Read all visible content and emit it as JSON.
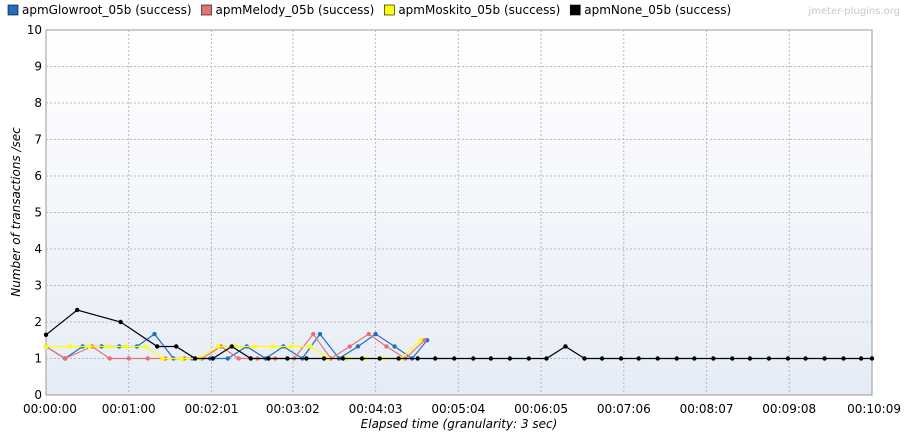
{
  "watermark": "jmeter-plugins.org",
  "chart_data": {
    "type": "line",
    "xlabel": "Elapsed time (granularity: 3 sec)",
    "ylabel": "Number of transactions /sec",
    "ylim": [
      0,
      10
    ],
    "y_ticks": [
      0,
      1,
      2,
      3,
      4,
      5,
      6,
      7,
      8,
      9,
      10
    ],
    "x_unit": "seconds",
    "xlim": [
      0,
      609
    ],
    "x_ticks": [
      0,
      61,
      122,
      182,
      243,
      304,
      365,
      426,
      487,
      548,
      609
    ],
    "x_tick_labels": [
      "00:00:00",
      "00:01:00",
      "00:02:01",
      "00:03:02",
      "00:04:03",
      "00:05:04",
      "00:06:05",
      "00:07:06",
      "00:08:07",
      "00:09:08",
      "00:10:09"
    ],
    "grid": true,
    "legend_position": "top",
    "series": [
      {
        "name": "apmGlowroot_05b (success)",
        "color": "#1f6fc5",
        "points": [
          [
            0,
            1.33
          ],
          [
            14,
            1.0
          ],
          [
            27,
            1.33
          ],
          [
            41,
            1.33
          ],
          [
            54,
            1.33
          ],
          [
            67,
            1.33
          ],
          [
            80,
            1.67
          ],
          [
            94,
            1.0
          ],
          [
            108,
            1.0
          ],
          [
            121,
            1.0
          ],
          [
            134,
            1.0
          ],
          [
            148,
            1.33
          ],
          [
            162,
            1.0
          ],
          [
            175,
            1.33
          ],
          [
            189,
            1.0
          ],
          [
            202,
            1.67
          ],
          [
            216,
            1.0
          ],
          [
            230,
            1.33
          ],
          [
            243,
            1.67
          ],
          [
            257,
            1.33
          ],
          [
            270,
            1.0
          ],
          [
            281,
            1.5
          ]
        ]
      },
      {
        "name": "apmMelody_05b (success)",
        "color": "#e87272",
        "points": [
          [
            0,
            1.33
          ],
          [
            14,
            1.0
          ],
          [
            34,
            1.33
          ],
          [
            47,
            1.0
          ],
          [
            61,
            1.0
          ],
          [
            75,
            1.0
          ],
          [
            88,
            1.0
          ],
          [
            102,
            1.0
          ],
          [
            115,
            1.0
          ],
          [
            129,
            1.33
          ],
          [
            142,
            1.0
          ],
          [
            156,
            1.0
          ],
          [
            169,
            1.0
          ],
          [
            183,
            1.0
          ],
          [
            197,
            1.67
          ],
          [
            210,
            1.0
          ],
          [
            224,
            1.33
          ],
          [
            238,
            1.67
          ],
          [
            251,
            1.33
          ],
          [
            265,
            1.0
          ],
          [
            279,
            1.5
          ]
        ]
      },
      {
        "name": "apmMoskito_05b (success)",
        "color": "#ffff00",
        "points": [
          [
            0,
            1.33
          ],
          [
            18,
            1.33
          ],
          [
            32,
            1.33
          ],
          [
            45,
            1.33
          ],
          [
            59,
            1.33
          ],
          [
            73,
            1.33
          ],
          [
            86,
            1.0
          ],
          [
            100,
            1.0
          ],
          [
            113,
            1.0
          ],
          [
            127,
            1.33
          ],
          [
            140,
            1.33
          ],
          [
            154,
            1.33
          ],
          [
            167,
            1.33
          ],
          [
            181,
            1.33
          ],
          [
            195,
            1.33
          ],
          [
            208,
            1.0
          ],
          [
            222,
            1.0
          ],
          [
            235,
            1.0
          ],
          [
            249,
            1.0
          ],
          [
            262,
            1.0
          ],
          [
            276,
            1.5
          ]
        ]
      },
      {
        "name": "apmNone_05b (success)",
        "color": "#000000",
        "points": [
          [
            0,
            1.65
          ],
          [
            23,
            2.33
          ],
          [
            55,
            2.0
          ],
          [
            82,
            1.33
          ],
          [
            96,
            1.33
          ],
          [
            110,
            1.0
          ],
          [
            123,
            1.0
          ],
          [
            137,
            1.33
          ],
          [
            151,
            1.0
          ],
          [
            164,
            1.0
          ],
          [
            178,
            1.0
          ],
          [
            192,
            1.0
          ],
          [
            205,
            1.0
          ],
          [
            219,
            1.0
          ],
          [
            233,
            1.0
          ],
          [
            246,
            1.0
          ],
          [
            260,
            1.0
          ],
          [
            274,
            1.0
          ],
          [
            287,
            1.0
          ],
          [
            301,
            1.0
          ],
          [
            315,
            1.0
          ],
          [
            328,
            1.0
          ],
          [
            342,
            1.0
          ],
          [
            356,
            1.0
          ],
          [
            369,
            1.0
          ],
          [
            383,
            1.33
          ],
          [
            397,
            1.0
          ],
          [
            410,
            1.0
          ],
          [
            424,
            1.0
          ],
          [
            437,
            1.0
          ],
          [
            451,
            1.0
          ],
          [
            465,
            1.0
          ],
          [
            478,
            1.0
          ],
          [
            492,
            1.0
          ],
          [
            506,
            1.0
          ],
          [
            519,
            1.0
          ],
          [
            533,
            1.0
          ],
          [
            547,
            1.0
          ],
          [
            560,
            1.0
          ],
          [
            574,
            1.0
          ],
          [
            588,
            1.0
          ],
          [
            601,
            1.0
          ],
          [
            609,
            1.0
          ]
        ]
      }
    ]
  }
}
